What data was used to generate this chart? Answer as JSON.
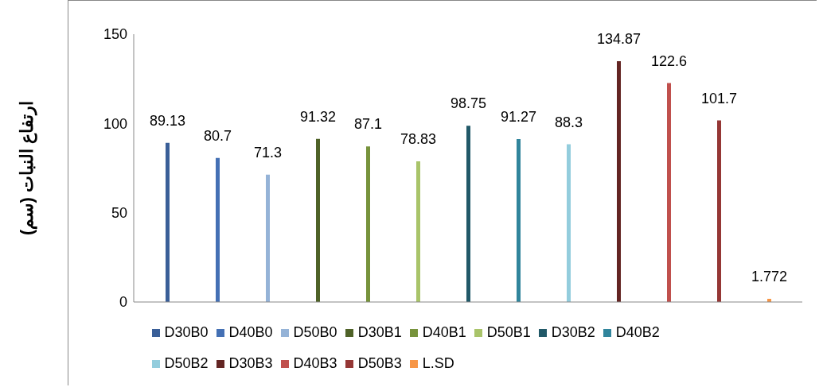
{
  "chart_data": {
    "type": "bar",
    "ylabel": "ارتفاع النبات (سم)",
    "categories": [
      null
    ],
    "ylim": [
      0,
      150
    ],
    "yticks": [
      0,
      50,
      100,
      150
    ],
    "grid": false,
    "legend": "bottom",
    "data_labels": true,
    "series": [
      {
        "name": "D30B0",
        "color": "#3a5f98",
        "values": [
          89.13
        ]
      },
      {
        "name": "D40B0",
        "color": "#4470b4",
        "values": [
          80.7
        ]
      },
      {
        "name": "D50B0",
        "color": "#95b3d7",
        "values": [
          71.3
        ]
      },
      {
        "name": "D30B1",
        "color": "#4f6228",
        "values": [
          91.32
        ]
      },
      {
        "name": "D40B1",
        "color": "#77933c",
        "values": [
          87.1
        ]
      },
      {
        "name": "D50B1",
        "color": "#a9c46a",
        "values": [
          78.83
        ]
      },
      {
        "name": "D30B2",
        "color": "#215968",
        "values": [
          98.75
        ]
      },
      {
        "name": "D40B2",
        "color": "#31859c",
        "values": [
          91.27
        ]
      },
      {
        "name": "D50B2",
        "color": "#93cddd",
        "values": [
          88.3
        ]
      },
      {
        "name": "D30B3",
        "color": "#632523",
        "values": [
          134.87
        ]
      },
      {
        "name": "D40B3",
        "color": "#c0504d",
        "values": [
          122.6
        ]
      },
      {
        "name": "D50B3",
        "color": "#953735",
        "values": [
          101.7
        ]
      },
      {
        "name": "L.SD",
        "color": "#f79646",
        "values": [
          1.772
        ]
      }
    ]
  }
}
